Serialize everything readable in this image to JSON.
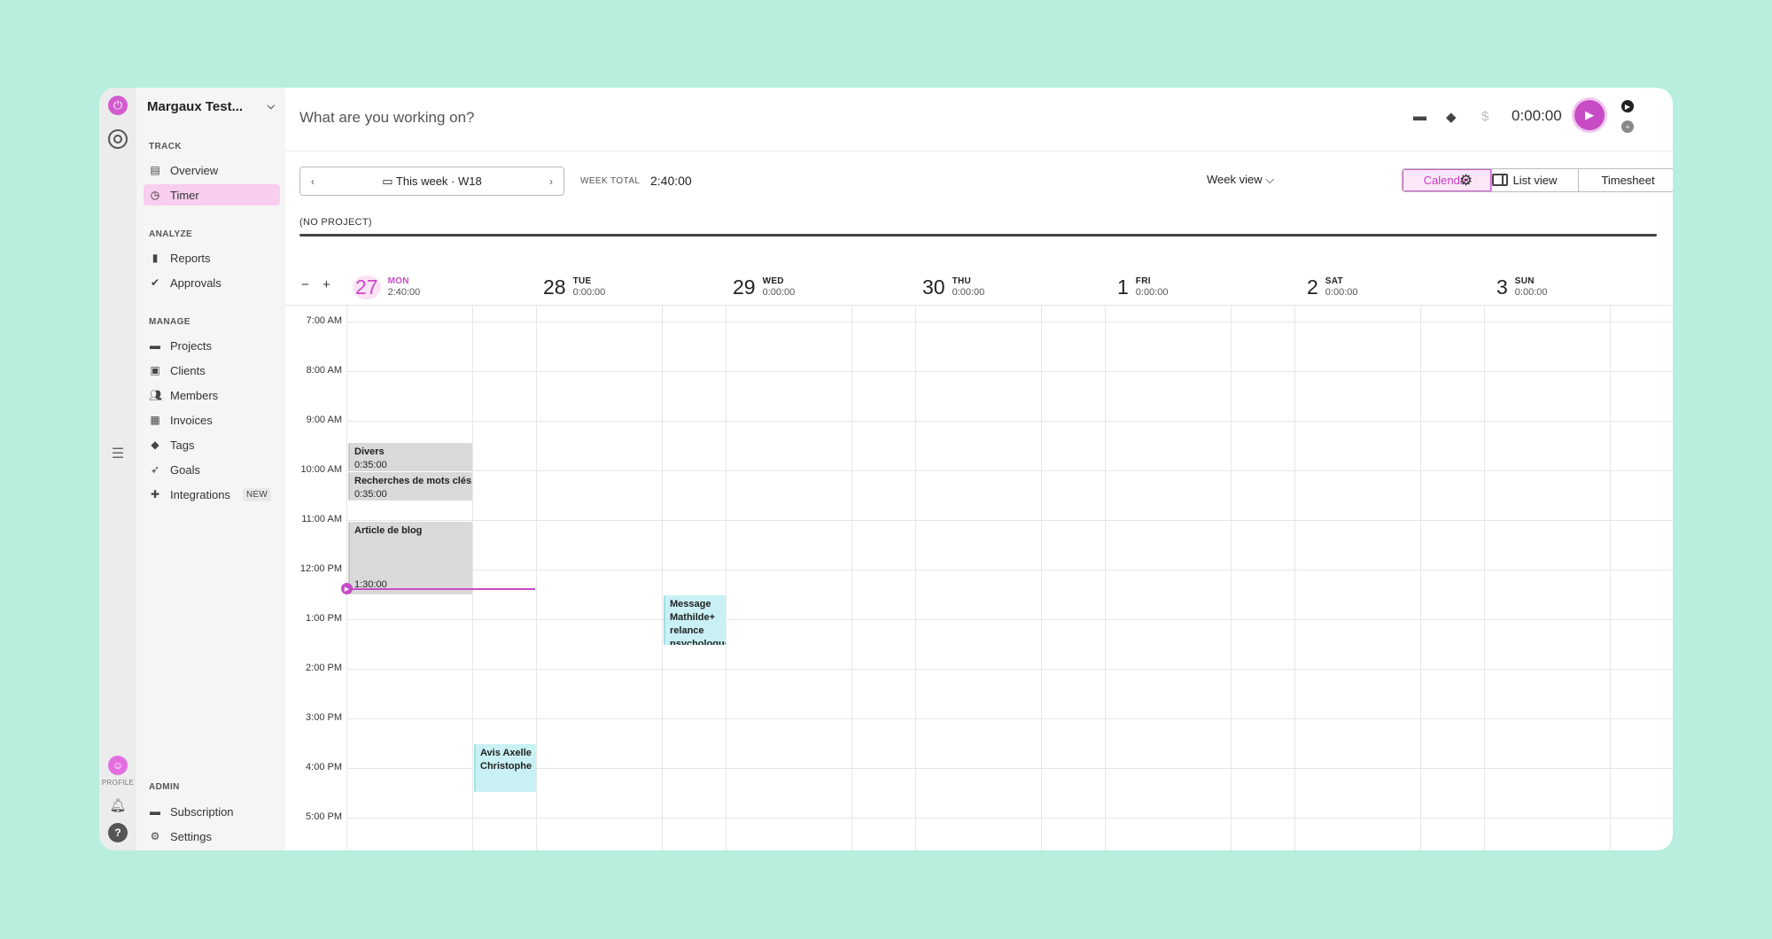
{
  "workspace": {
    "name": "Margaux Test..."
  },
  "rail": {
    "profile_label": "PROFILE"
  },
  "sidebar": {
    "track_title": "TRACK",
    "analyze_title": "ANALYZE",
    "manage_title": "MANAGE",
    "admin_title": "ADMIN",
    "track": [
      {
        "label": "Overview",
        "icon": "overview-icon"
      },
      {
        "label": "Timer",
        "icon": "clock-icon"
      }
    ],
    "analyze": [
      {
        "label": "Reports",
        "icon": "bar-chart-icon"
      },
      {
        "label": "Approvals",
        "icon": "check-circle-icon"
      }
    ],
    "manage": [
      {
        "label": "Projects",
        "icon": "folder-icon"
      },
      {
        "label": "Clients",
        "icon": "client-icon"
      },
      {
        "label": "Members",
        "icon": "members-icon"
      },
      {
        "label": "Invoices",
        "icon": "invoice-icon"
      },
      {
        "label": "Tags",
        "icon": "tag-icon"
      },
      {
        "label": "Goals",
        "icon": "rocket-icon"
      },
      {
        "label": "Integrations",
        "icon": "puzzle-icon",
        "badge": "NEW"
      }
    ],
    "admin": [
      {
        "label": "Subscription",
        "icon": "card-icon"
      },
      {
        "label": "Settings",
        "icon": "gear-icon"
      }
    ]
  },
  "topbar": {
    "placeholder": "What are you working on?",
    "timer": "0:00:00",
    "accent": "#c84bc6"
  },
  "toolbar": {
    "week_label": "This week",
    "week_sep": "·",
    "week_num": "W18",
    "week_total_label": "WEEK TOTAL",
    "week_total": "2:40:00",
    "view_select": "Week view",
    "views": [
      "Calendar",
      "List view",
      "Timesheet"
    ],
    "active_view": "Calendar"
  },
  "project_bar": {
    "label": "(NO PROJECT)"
  },
  "calendar": {
    "days": [
      {
        "num": "27",
        "name": "MON",
        "total": "2:40:00",
        "today": true
      },
      {
        "num": "28",
        "name": "TUE",
        "total": "0:00:00"
      },
      {
        "num": "29",
        "name": "WED",
        "total": "0:00:00"
      },
      {
        "num": "30",
        "name": "THU",
        "total": "0:00:00"
      },
      {
        "num": "1",
        "name": "FRI",
        "total": "0:00:00"
      },
      {
        "num": "2",
        "name": "SAT",
        "total": "0:00:00"
      },
      {
        "num": "3",
        "name": "SUN",
        "total": "0:00:00"
      }
    ],
    "hours": [
      "7:00 AM",
      "8:00 AM",
      "9:00 AM",
      "10:00 AM",
      "11:00 AM",
      "12:00 PM",
      "1:00 PM",
      "2:00 PM",
      "3:00 PM",
      "4:00 PM",
      "5:00 PM"
    ],
    "events": [
      {
        "title": "Divers",
        "duration": "0:35:00",
        "color": "grey"
      },
      {
        "title": "Recherches de mots clés",
        "duration": "0:35:00",
        "color": "grey"
      },
      {
        "title": "Article de blog",
        "duration": "1:30:00",
        "color": "grey"
      },
      {
        "title": "Message Mathilde+ relance psychologue",
        "duration": "",
        "color": "cyan"
      },
      {
        "title": "Avis Axelle Christophe",
        "duration": "",
        "color": "cyan"
      }
    ]
  }
}
